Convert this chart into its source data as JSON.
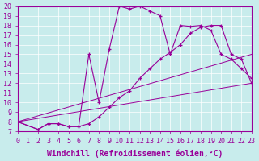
{
  "xlabel": "Windchill (Refroidissement éolien,°C)",
  "bg_color": "#c8ecec",
  "line_color": "#990099",
  "xlim": [
    0,
    23
  ],
  "ylim": [
    7,
    20
  ],
  "xticks": [
    0,
    1,
    2,
    3,
    4,
    5,
    6,
    7,
    8,
    9,
    10,
    11,
    12,
    13,
    14,
    15,
    16,
    17,
    18,
    19,
    20,
    21,
    22,
    23
  ],
  "yticks": [
    7,
    8,
    9,
    10,
    11,
    12,
    13,
    14,
    15,
    16,
    17,
    18,
    19,
    20
  ],
  "line1_x": [
    0,
    2,
    3,
    4,
    5,
    6,
    7,
    8,
    9,
    10,
    11,
    12,
    13,
    14,
    15,
    16,
    17,
    18,
    19,
    20,
    21,
    22,
    23
  ],
  "line1_y": [
    8,
    7.2,
    7.8,
    7.8,
    7.5,
    7.5,
    15.0,
    10.0,
    15.5,
    20.0,
    19.7,
    20.0,
    19.5,
    19.0,
    15.0,
    18.0,
    17.9,
    18.0,
    17.5,
    15.0,
    14.5,
    13.5,
    12.5
  ],
  "line2_x": [
    0,
    2,
    3,
    4,
    5,
    6,
    7,
    8,
    9,
    10,
    11,
    12,
    13,
    14,
    15,
    16,
    17,
    18,
    19,
    20,
    21,
    22,
    23
  ],
  "line2_y": [
    8,
    7.2,
    7.8,
    7.8,
    7.5,
    7.5,
    7.8,
    8.5,
    9.5,
    10.5,
    11.2,
    12.5,
    13.5,
    14.5,
    15.2,
    16.0,
    17.2,
    17.8,
    18.0,
    18.0,
    15.0,
    14.5,
    12.0
  ],
  "line3_x": [
    0,
    23
  ],
  "line3_y": [
    8,
    12.0
  ],
  "line4_x": [
    0,
    23
  ],
  "line4_y": [
    8,
    15.0
  ],
  "grid_color": "#ffffff",
  "tick_color": "#990099",
  "tick_fontsize": 6.0,
  "xlabel_fontsize": 7.0
}
